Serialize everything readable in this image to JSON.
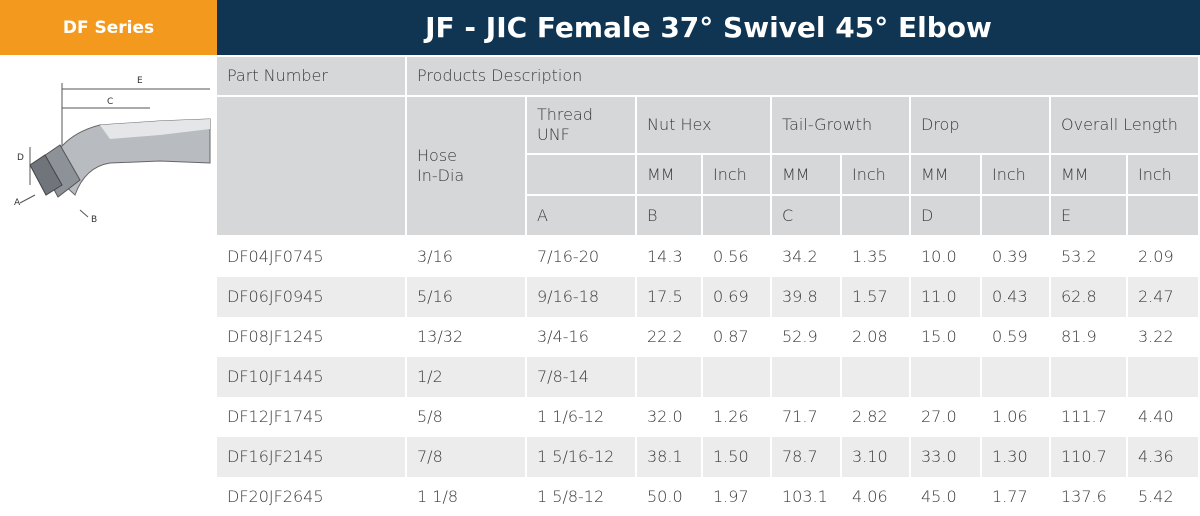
{
  "header": {
    "series": "DF Series",
    "title": "JF - JIC Female 37° Swivel 45° Elbow"
  },
  "diagram": {
    "labels": [
      "E",
      "C",
      "D",
      "A",
      "B"
    ]
  },
  "table": {
    "part_number": "Part Number",
    "products_description": "Products Description",
    "hose": "Hose\nIn-Dia",
    "thread": "Thread\nUNF",
    "groups": [
      "Nut Hex",
      "Tail-Growth",
      "Drop",
      "Overall Length"
    ],
    "units": [
      "MM",
      "Inch"
    ],
    "dims": [
      "A",
      "B",
      "C",
      "D",
      "E"
    ],
    "rows": [
      [
        "DF04JF0745",
        "3/16",
        "7/16-20",
        "14.3",
        "0.56",
        "34.2",
        "1.35",
        "10.0",
        "0.39",
        "53.2",
        "2.09"
      ],
      [
        "DF06JF0945",
        "5/16",
        "9/16-18",
        "17.5",
        "0.69",
        "39.8",
        "1.57",
        "11.0",
        "0.43",
        "62.8",
        "2.47"
      ],
      [
        "DF08JF1245",
        "13/32",
        "3/4-16",
        "22.2",
        "0.87",
        "52.9",
        "2.08",
        "15.0",
        "0.59",
        "81.9",
        "3.22"
      ],
      [
        "DF10JF1445",
        "1/2",
        "7/8-14"
      ],
      [
        "DF12JF1745",
        "5/8",
        "1 1/6-12",
        "32.0",
        "1.26",
        "71.7",
        "2.82",
        "27.0",
        "1.06",
        "111.7",
        "4.40"
      ],
      [
        "DF16JF2145",
        "7/8",
        "1 5/16-12",
        "38.1",
        "1.50",
        "78.7",
        "3.10",
        "33.0",
        "1.30",
        "110.7",
        "4.36"
      ],
      [
        "DF20JF2645",
        "1 1/8",
        "1 5/8-12",
        "50.0",
        "1.97",
        "103.1",
        "4.06",
        "45.0",
        "1.77",
        "137.6",
        "5.42"
      ]
    ]
  }
}
